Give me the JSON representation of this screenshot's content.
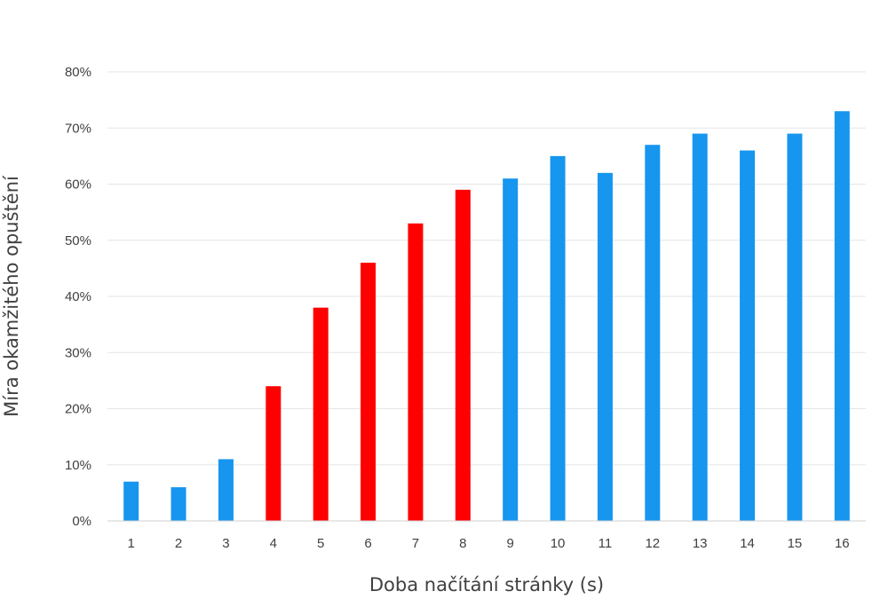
{
  "chart_data": {
    "type": "bar",
    "title": "",
    "xlabel": "Doba načítání stránky (s)",
    "ylabel": "Míra okamžitého opuštění",
    "categories": [
      "1",
      "2",
      "3",
      "4",
      "5",
      "6",
      "7",
      "8",
      "9",
      "10",
      "11",
      "12",
      "13",
      "14",
      "15",
      "16"
    ],
    "values": [
      7,
      6,
      11,
      24,
      38,
      46,
      53,
      59,
      61,
      65,
      62,
      67,
      69,
      66,
      69,
      73
    ],
    "value_unit": "%",
    "bar_colors": [
      "#1696ee",
      "#1696ee",
      "#1696ee",
      "#ff0000",
      "#ff0000",
      "#ff0000",
      "#ff0000",
      "#ff0000",
      "#1696ee",
      "#1696ee",
      "#1696ee",
      "#1696ee",
      "#1696ee",
      "#1696ee",
      "#1696ee",
      "#1696ee"
    ],
    "ylim": [
      0,
      80
    ],
    "yticks": [
      "0%",
      "10%",
      "20%",
      "30%",
      "40%",
      "50%",
      "60%",
      "70%",
      "80%"
    ],
    "grid": true,
    "legend": "none"
  }
}
